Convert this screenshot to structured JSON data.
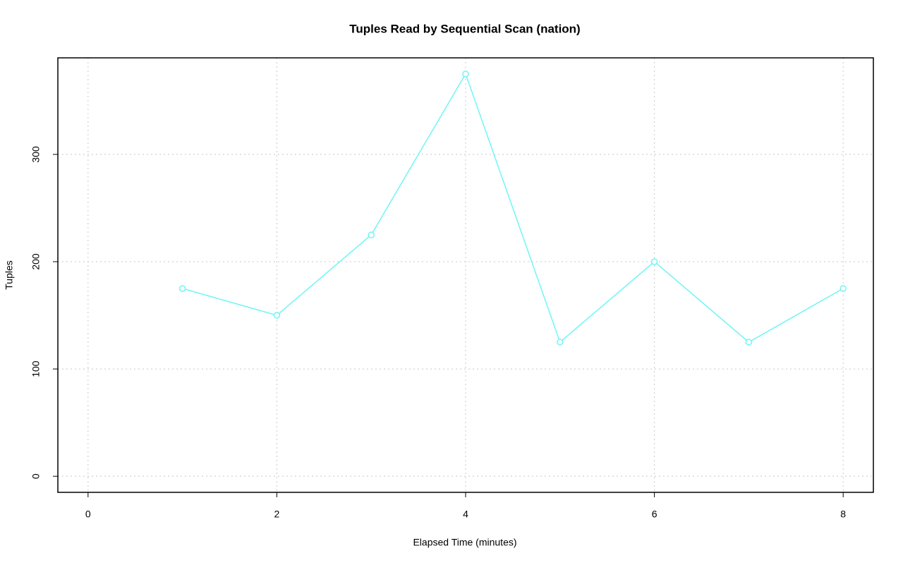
{
  "chart_data": {
    "type": "line",
    "title": "Tuples Read by Sequential Scan (nation)",
    "x_label": "Elapsed Time (minutes)",
    "y_label": "Tuples",
    "x": [
      1,
      2,
      3,
      4,
      5,
      6,
      7,
      8
    ],
    "series": [
      {
        "name": "nation",
        "color": "#70f5f5",
        "values": [
          175,
          150,
          225,
          375,
          125,
          200,
          125,
          175
        ]
      }
    ],
    "xlim": [
      -0.32,
      8.32
    ],
    "xticks": [
      0,
      2,
      4,
      6,
      8
    ],
    "ylim": [
      -15,
      390
    ],
    "yticks": [
      0,
      100,
      200,
      300
    ],
    "grid": true
  }
}
